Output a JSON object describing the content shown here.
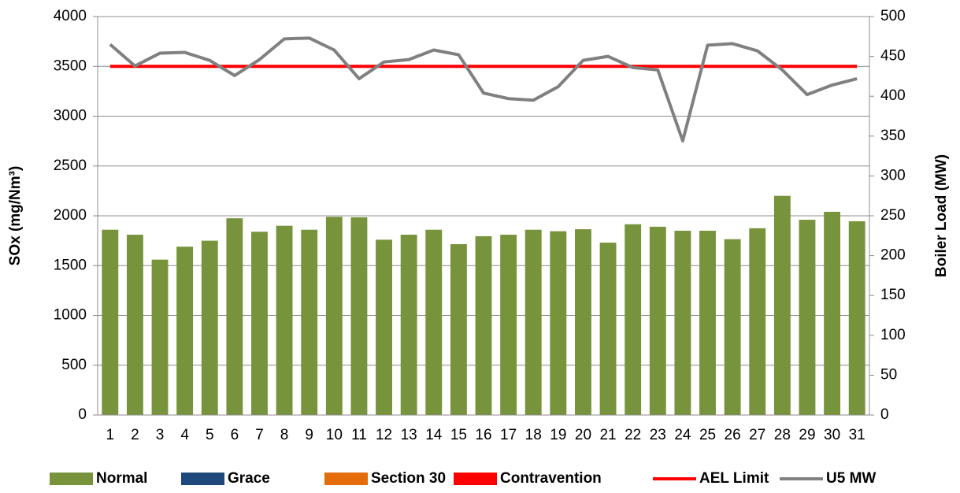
{
  "chart_data": {
    "type": "bar",
    "categories": [
      "1",
      "2",
      "3",
      "4",
      "5",
      "6",
      "7",
      "8",
      "9",
      "10",
      "11",
      "12",
      "13",
      "14",
      "15",
      "16",
      "17",
      "18",
      "19",
      "20",
      "21",
      "22",
      "23",
      "24",
      "25",
      "26",
      "27",
      "28",
      "29",
      "30",
      "31"
    ],
    "ylabel": "SOx (mg/Nm³)",
    "y2label": "Boiler Load (MW)",
    "ylim": [
      0,
      4000
    ],
    "yticks": [
      0,
      500,
      1000,
      1500,
      2000,
      2500,
      3000,
      3500,
      4000
    ],
    "y2lim": [
      0,
      500
    ],
    "y2ticks": [
      0,
      50,
      100,
      150,
      200,
      250,
      300,
      350,
      400,
      450,
      500
    ],
    "grid": true,
    "legend": "bottom",
    "series": [
      {
        "name": "Normal",
        "type": "bar",
        "color": "#77933c",
        "values": [
          1860,
          1810,
          1560,
          1690,
          1750,
          1975,
          1840,
          1900,
          1860,
          1990,
          1985,
          1760,
          1810,
          1860,
          1715,
          1795,
          1810,
          1860,
          1845,
          1865,
          1730,
          1915,
          1890,
          1850,
          1850,
          1765,
          1875,
          2200,
          1960,
          2040,
          1945
        ]
      },
      {
        "name": "Grace",
        "type": "bar",
        "color": "#1f497d",
        "values": [
          0,
          0,
          0,
          0,
          0,
          0,
          0,
          0,
          0,
          0,
          0,
          0,
          0,
          0,
          0,
          0,
          0,
          0,
          0,
          0,
          0,
          0,
          0,
          0,
          0,
          0,
          0,
          0,
          0,
          0,
          0
        ]
      },
      {
        "name": "Section 30",
        "type": "bar",
        "color": "#e46c0a",
        "values": [
          0,
          0,
          0,
          0,
          0,
          0,
          0,
          0,
          0,
          0,
          0,
          0,
          0,
          0,
          0,
          0,
          0,
          0,
          0,
          0,
          0,
          0,
          0,
          0,
          0,
          0,
          0,
          0,
          0,
          0,
          0
        ]
      },
      {
        "name": "Contravention",
        "type": "bar",
        "color": "#ff0000",
        "values": [
          0,
          0,
          0,
          0,
          0,
          0,
          0,
          0,
          0,
          0,
          0,
          0,
          0,
          0,
          0,
          0,
          0,
          0,
          0,
          0,
          0,
          0,
          0,
          0,
          0,
          0,
          0,
          0,
          0,
          0,
          0
        ]
      },
      {
        "name": "AEL Limit",
        "type": "line",
        "color": "#ff0000",
        "values": [
          3500,
          3500,
          3500,
          3500,
          3500,
          3500,
          3500,
          3500,
          3500,
          3500,
          3500,
          3500,
          3500,
          3500,
          3500,
          3500,
          3500,
          3500,
          3500,
          3500,
          3500,
          3500,
          3500,
          3500,
          3500,
          3500,
          3500,
          3500,
          3500,
          3500,
          3500
        ]
      },
      {
        "name": "U5 MW",
        "type": "line",
        "axis": "y2",
        "color": "#808080",
        "values": [
          465,
          438,
          454,
          455,
          445,
          426,
          446,
          472,
          473,
          458,
          422,
          443,
          446,
          458,
          452,
          404,
          397,
          395,
          412,
          445,
          450,
          436,
          433,
          344,
          464,
          466,
          457,
          433,
          402,
          414,
          422
        ]
      }
    ]
  }
}
